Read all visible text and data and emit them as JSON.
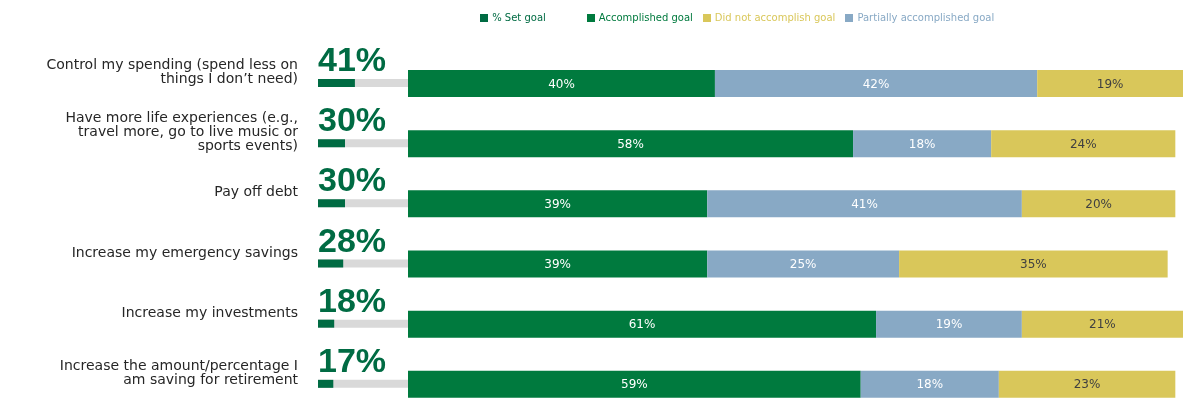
{
  "chart_data": [
    {
      "type": "bar",
      "orientation": "horizontal",
      "categories": [
        "Control my spending (spend less on things I don’t need)",
        "Have more life experiences (e.g., travel more, go to live music or sports events)",
        "Pay off debt",
        "Increase my emergency savings",
        "Increase my investments",
        "Increase the amount/percentage I am saving for retirement"
      ],
      "xlim": [
        0,
        100
      ],
      "tick_labels": "y",
      "legend": "top",
      "series": [
        {
          "name": "% Set goal",
          "color": "#006b43",
          "values": [
            41,
            30,
            30,
            28,
            18,
            17
          ],
          "value_labels": [
            "41%",
            "30%",
            "30%",
            "28%",
            "18%",
            "17%"
          ]
        }
      ]
    },
    {
      "type": "bar",
      "orientation": "horizontal",
      "stacked": true,
      "categories": [
        null,
        null,
        null,
        null,
        null,
        null
      ],
      "tick_labels": false,
      "legend": "top",
      "series": [
        {
          "name": "Accomplished goal",
          "color": "#007a3e",
          "values": [
            40,
            58,
            39,
            39,
            61,
            59
          ],
          "value_labels": [
            "40%",
            "58%",
            "39%",
            "39%",
            "61%",
            "59%"
          ]
        },
        {
          "name": "Partially accomplished goal",
          "color": "#88a9c5",
          "values": [
            42,
            18,
            41,
            25,
            19,
            18
          ],
          "value_labels": [
            "42%",
            "18%",
            "41%",
            "25%",
            "19%",
            "18%"
          ]
        },
        {
          "name": "Did not accomplish goal",
          "color": "#d9c75a",
          "values": [
            19,
            24,
            20,
            35,
            21,
            23
          ],
          "value_labels": [
            "19%",
            "24%",
            "20%",
            "35%",
            "21%",
            "23%"
          ]
        }
      ]
    }
  ]
}
